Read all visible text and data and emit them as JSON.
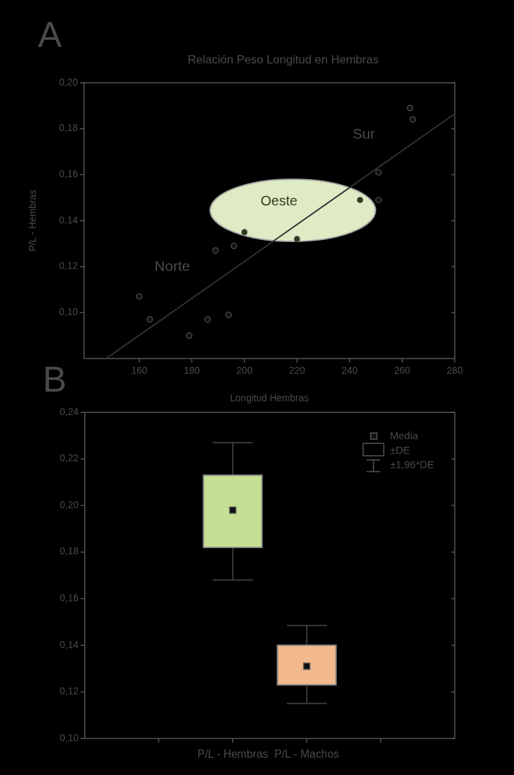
{
  "chart_data": [
    {
      "type": "scatter",
      "title": "Relación Peso Longitud en Hembras",
      "xlabel": "Longitud Hembras",
      "ylabel": "P/L - Hembras",
      "xlim": [
        139,
        280
      ],
      "xticks": [
        160,
        180,
        200,
        220,
        240,
        260,
        280
      ],
      "ylim": [
        0.08,
        0.2
      ],
      "yticks": [
        {
          "value": 0.1,
          "label": "0,10"
        },
        {
          "value": 0.12,
          "label": "0,12"
        },
        {
          "value": 0.14,
          "label": "0,14"
        },
        {
          "value": 0.16,
          "label": "0,16"
        },
        {
          "value": 0.18,
          "label": "0,18"
        },
        {
          "value": 0.2,
          "label": "0,20"
        }
      ],
      "grid": false,
      "series": [
        {
          "marker": "circle",
          "color": "#111111",
          "x": [
            160,
            164,
            179,
            186,
            194,
            189,
            196,
            251,
            251,
            263,
            264
          ],
          "values": [
            0.107,
            0.097,
            0.09,
            0.097,
            0.099,
            0.127,
            0.129,
            0.149,
            0.161,
            0.189,
            0.184
          ]
        },
        {
          "marker": "circle",
          "color": "#2a3a1a",
          "x": [
            200,
            220,
            244
          ],
          "values": [
            0.135,
            0.132,
            0.149
          ]
        },
        {
          "type": "line",
          "color": "#333333",
          "x": [
            147.4,
            280
          ],
          "values": [
            0.08,
            0.1865
          ]
        }
      ],
      "annotations": [
        "A",
        "Oeste",
        "Norte",
        "Sur"
      ]
    },
    {
      "type": "box",
      "categories": [
        null,
        "P/L - Hembras",
        "P/L - Machos",
        null
      ],
      "ylim": [
        0.1,
        0.24
      ],
      "yticks": [
        {
          "value": 0.1,
          "label": "0,10"
        },
        {
          "value": 0.12,
          "label": "0,12"
        },
        {
          "value": 0.14,
          "label": "0,14"
        },
        {
          "value": 0.16,
          "label": "0,16"
        },
        {
          "value": 0.18,
          "label": "0,18"
        },
        {
          "value": 0.2,
          "label": "0,20"
        },
        {
          "value": 0.22,
          "label": "0,22"
        },
        {
          "value": 0.24,
          "label": "0,24"
        }
      ],
      "colors": [
        null,
        "#c5df94",
        "#f2b98c",
        null
      ],
      "grid": false,
      "boxes": [
        null,
        {
          "low": 0.168,
          "q1": 0.182,
          "median": 0.198,
          "q3": 0.213,
          "high": 0.227
        },
        {
          "low": 0.115,
          "q1": 0.123,
          "median": 0.131,
          "q3": 0.14,
          "high": 0.1485
        },
        null
      ],
      "annotations": [
        "B",
        "Media",
        "±DE",
        "±1,96*DE"
      ]
    }
  ]
}
